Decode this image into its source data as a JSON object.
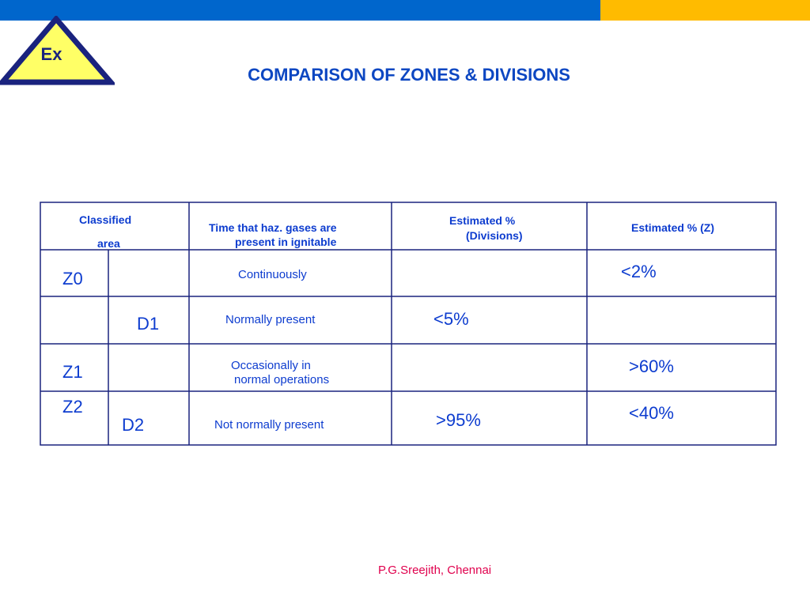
{
  "title": "COMPARISON OF ZONES & DIVISIONS",
  "logo": {
    "text": "Ex",
    "fill": "#ffff66",
    "border": "#1a237e"
  },
  "colors": {
    "top_bar": "#0066cc",
    "top_bar_accent": "#ffbb00",
    "text": "#0d3ccf",
    "footer": "#e0004d"
  },
  "table": {
    "headers": {
      "classified_line1": "Classified",
      "classified_line2": "area",
      "time_line1": "Time that haz. gases are",
      "time_line2": "present in ignitable",
      "div_line1": "Estimated %",
      "div_line2": "(Divisions)",
      "zone": "Estimated % (Z)"
    },
    "rows": [
      {
        "zone": "Z0",
        "division": "",
        "time": "Continuously",
        "div_pct": "",
        "zone_pct": "<2%"
      },
      {
        "zone": "",
        "division": "D1",
        "time": "Normally present",
        "div_pct": "<5%",
        "zone_pct": ""
      },
      {
        "zone": "Z1",
        "division": "",
        "time_line1": "Occasionally in",
        "time_line2": "normal operations",
        "div_pct": "",
        "zone_pct": ">60%"
      },
      {
        "zone": "Z2",
        "division": "D2",
        "time": "Not normally present",
        "div_pct": ">95%",
        "zone_pct": "<40%"
      }
    ]
  },
  "footer": "P.G.Sreejith, Chennai"
}
